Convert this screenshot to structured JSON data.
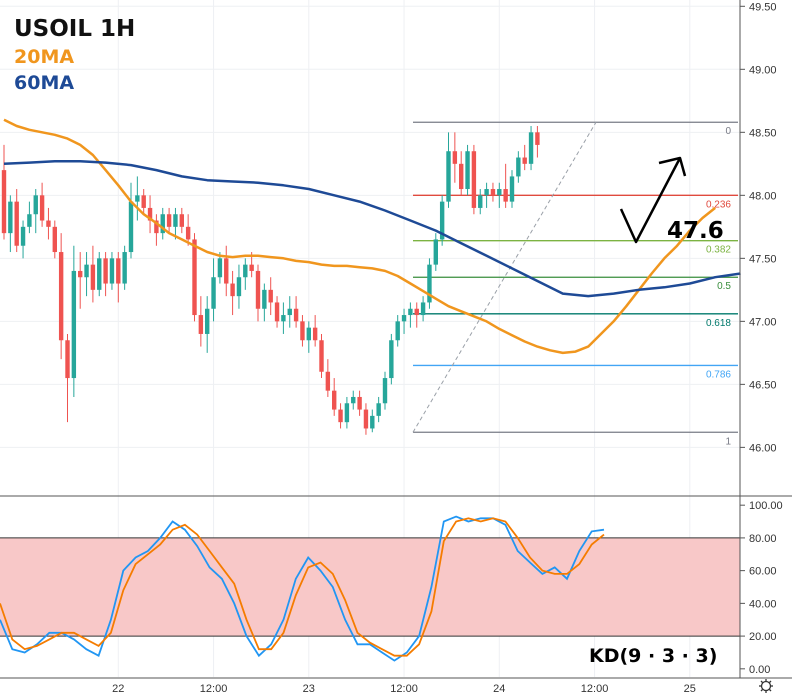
{
  "chart_data": [
    {
      "type": "candlestick",
      "title": "USOIL 1H",
      "legend": [
        "20MA",
        "60MA"
      ],
      "colors": {
        "up": "#26a69a",
        "down": "#ef5350",
        "ma20": "#f0961e",
        "ma60": "#1e4a96"
      },
      "x_tick_labels": [
        "22",
        "12:00",
        "23",
        "12:00",
        "24",
        "12:00",
        "25"
      ],
      "y_tick_labels": [
        "49.50",
        "49.00",
        "48.50",
        "48.00",
        "47.50",
        "47.00",
        "46.50",
        "46.00"
      ],
      "ylim": [
        45.63,
        49.55
      ],
      "candles_ohlc": [
        [
          48.2,
          48.4,
          47.65,
          47.7
        ],
        [
          47.7,
          48.0,
          47.55,
          47.95
        ],
        [
          47.95,
          48.05,
          47.55,
          47.6
        ],
        [
          47.6,
          47.8,
          47.5,
          47.75
        ],
        [
          47.75,
          47.95,
          47.7,
          47.85
        ],
        [
          47.85,
          48.05,
          47.7,
          48.0
        ],
        [
          48.0,
          48.1,
          47.75,
          47.8
        ],
        [
          47.8,
          47.9,
          47.65,
          47.75
        ],
        [
          47.75,
          47.8,
          47.5,
          47.55
        ],
        [
          47.55,
          47.7,
          46.7,
          46.85
        ],
        [
          46.85,
          46.9,
          46.2,
          46.55
        ],
        [
          46.55,
          47.6,
          46.4,
          47.4
        ],
        [
          47.4,
          47.55,
          47.1,
          47.35
        ],
        [
          47.35,
          47.55,
          47.2,
          47.45
        ],
        [
          47.45,
          47.6,
          47.15,
          47.25
        ],
        [
          47.25,
          47.55,
          47.2,
          47.5
        ],
        [
          47.5,
          47.55,
          47.2,
          47.3
        ],
        [
          47.3,
          47.55,
          47.25,
          47.5
        ],
        [
          47.5,
          47.55,
          47.15,
          47.3
        ],
        [
          47.3,
          47.6,
          47.25,
          47.55
        ],
        [
          47.55,
          48.1,
          47.5,
          47.95
        ],
        [
          47.95,
          48.15,
          47.8,
          48.0
        ],
        [
          48.0,
          48.05,
          47.85,
          47.9
        ],
        [
          47.9,
          48.0,
          47.7,
          47.8
        ],
        [
          47.8,
          47.85,
          47.6,
          47.7
        ],
        [
          47.7,
          47.9,
          47.65,
          47.85
        ],
        [
          47.85,
          47.9,
          47.7,
          47.75
        ],
        [
          47.75,
          47.9,
          47.65,
          47.85
        ],
        [
          47.85,
          47.9,
          47.7,
          47.75
        ],
        [
          47.75,
          47.85,
          47.6,
          47.65
        ],
        [
          47.65,
          47.7,
          47.0,
          47.05
        ],
        [
          47.05,
          47.2,
          46.8,
          46.9
        ],
        [
          46.9,
          47.2,
          46.75,
          47.1
        ],
        [
          47.1,
          47.5,
          47.0,
          47.35
        ],
        [
          47.35,
          47.55,
          47.3,
          47.5
        ],
        [
          47.5,
          47.6,
          47.2,
          47.3
        ],
        [
          47.3,
          47.4,
          47.05,
          47.2
        ],
        [
          47.2,
          47.45,
          47.1,
          47.35
        ],
        [
          47.35,
          47.5,
          47.25,
          47.45
        ],
        [
          47.45,
          47.55,
          47.35,
          47.4
        ],
        [
          47.4,
          47.45,
          47.0,
          47.1
        ],
        [
          47.1,
          47.3,
          47.0,
          47.25
        ],
        [
          47.25,
          47.35,
          47.05,
          47.15
        ],
        [
          47.15,
          47.2,
          46.95,
          47.0
        ],
        [
          47.0,
          47.15,
          46.9,
          47.05
        ],
        [
          47.05,
          47.2,
          46.95,
          47.1
        ],
        [
          47.1,
          47.2,
          46.95,
          47.0
        ],
        [
          47.0,
          47.05,
          46.8,
          46.85
        ],
        [
          46.85,
          47.0,
          46.75,
          46.95
        ],
        [
          46.95,
          47.05,
          46.8,
          46.85
        ],
        [
          46.85,
          46.9,
          46.55,
          46.6
        ],
        [
          46.6,
          46.7,
          46.4,
          46.45
        ],
        [
          46.45,
          46.55,
          46.25,
          46.3
        ],
        [
          46.3,
          46.35,
          46.15,
          46.2
        ],
        [
          46.2,
          46.4,
          46.15,
          46.35
        ],
        [
          46.35,
          46.45,
          46.3,
          46.4
        ],
        [
          46.4,
          46.45,
          46.25,
          46.3
        ],
        [
          46.3,
          46.35,
          46.1,
          46.15
        ],
        [
          46.15,
          46.3,
          46.12,
          46.25
        ],
        [
          46.25,
          46.4,
          46.2,
          46.35
        ],
        [
          46.35,
          46.6,
          46.3,
          46.55
        ],
        [
          46.55,
          46.9,
          46.5,
          46.85
        ],
        [
          46.85,
          47.05,
          46.8,
          47.0
        ],
        [
          47.0,
          47.1,
          46.9,
          47.05
        ],
        [
          47.05,
          47.15,
          46.95,
          47.1
        ],
        [
          47.1,
          47.15,
          46.95,
          47.05
        ],
        [
          47.05,
          47.2,
          47.0,
          47.15
        ],
        [
          47.15,
          47.5,
          47.1,
          47.45
        ],
        [
          47.45,
          47.7,
          47.4,
          47.65
        ],
        [
          47.65,
          48.0,
          47.6,
          47.95
        ],
        [
          47.95,
          48.5,
          47.9,
          48.35
        ],
        [
          48.35,
          48.5,
          48.1,
          48.25
        ],
        [
          48.25,
          48.35,
          48.0,
          48.05
        ],
        [
          48.05,
          48.4,
          48.0,
          48.35
        ],
        [
          48.35,
          48.4,
          47.85,
          47.9
        ],
        [
          47.9,
          48.05,
          47.85,
          48.0
        ],
        [
          48.0,
          48.1,
          47.9,
          48.05
        ],
        [
          48.05,
          48.1,
          47.95,
          48.0
        ],
        [
          48.0,
          48.1,
          47.9,
          48.05
        ],
        [
          48.05,
          48.25,
          47.9,
          47.95
        ],
        [
          47.95,
          48.2,
          47.9,
          48.15
        ],
        [
          48.15,
          48.35,
          48.1,
          48.3
        ],
        [
          48.3,
          48.4,
          48.2,
          48.25
        ],
        [
          48.25,
          48.55,
          48.2,
          48.5
        ],
        [
          48.5,
          48.55,
          48.3,
          48.4
        ]
      ],
      "ma20": [
        48.6,
        48.55,
        48.52,
        48.5,
        48.48,
        48.45,
        48.4,
        48.32,
        48.2,
        48.08,
        47.95,
        47.85,
        47.78,
        47.7,
        47.65,
        47.6,
        47.55,
        47.52,
        47.51,
        47.52,
        47.52,
        47.51,
        47.5,
        47.48,
        47.47,
        47.45,
        47.44,
        47.44,
        47.43,
        47.42,
        47.4,
        47.36,
        47.3,
        47.24,
        47.18,
        47.12,
        47.08,
        47.04,
        47.0,
        46.94,
        46.89,
        46.84,
        46.8,
        46.77,
        46.75,
        46.76,
        46.8,
        46.9,
        47.0,
        47.12,
        47.25,
        47.38,
        47.5,
        47.6,
        47.72,
        47.82,
        47.9
      ],
      "ma20_x_index": [
        0,
        2,
        4,
        6,
        8,
        10,
        12,
        14,
        16,
        18,
        20,
        22,
        24,
        26,
        28,
        30,
        32,
        34,
        36,
        38,
        40,
        42,
        44,
        46,
        48,
        50,
        52,
        54,
        56,
        58,
        60,
        62,
        64,
        66,
        68,
        70,
        72,
        74,
        76,
        78,
        80,
        82,
        84,
        86,
        88,
        90,
        92,
        94,
        96,
        98,
        100,
        102,
        104,
        106,
        108,
        110,
        112
      ],
      "ma60": [
        48.25,
        48.26,
        48.27,
        48.27,
        48.26,
        48.24,
        48.2,
        48.15,
        48.12,
        48.11,
        48.1,
        48.08,
        48.05,
        48.0,
        47.95,
        47.88,
        47.8,
        47.72,
        47.62,
        47.52,
        47.42,
        47.32,
        47.22,
        47.2,
        47.22,
        47.25,
        47.27,
        47.3,
        47.35,
        47.38
      ],
      "ma60_x_index": [
        0,
        4,
        8,
        12,
        16,
        20,
        24,
        28,
        32,
        36,
        40,
        44,
        48,
        52,
        56,
        60,
        64,
        68,
        72,
        76,
        80,
        84,
        88,
        92,
        96,
        100,
        104,
        108,
        112,
        116
      ],
      "fibonacci_levels": [
        {
          "label": "0",
          "price": 48.58,
          "color": "#787b86"
        },
        {
          "label": "0.236",
          "price": 48.0,
          "color": "#e04a3e"
        },
        {
          "label": "0.382",
          "price": 47.64,
          "color": "#7cb342"
        },
        {
          "label": "0.5",
          "price": 47.35,
          "color": "#388e3c"
        },
        {
          "label": "0.618",
          "price": 47.06,
          "color": "#00796b"
        },
        {
          "label": "0.786",
          "price": 46.65,
          "color": "#42a5f5"
        },
        {
          "label": "1",
          "price": 46.12,
          "color": "#787b86"
        }
      ],
      "fib_trendline": {
        "from_price": 46.12,
        "to_price": 48.58
      },
      "annotation": {
        "text": "47.6"
      }
    },
    {
      "type": "line",
      "title": "KD(9 · 3 · 3)",
      "ylim": [
        -5,
        105
      ],
      "y_tick_labels": [
        "100.00",
        "80.00",
        "60.00",
        "40.00",
        "20.00",
        "0.00"
      ],
      "band": [
        20,
        80
      ],
      "band_color": "#f8c8c8",
      "series": [
        {
          "color": "#2196f3",
          "values": [
            30,
            12,
            10,
            15,
            22,
            22,
            18,
            12,
            8,
            30,
            60,
            68,
            72,
            80,
            90,
            85,
            75,
            62,
            55,
            40,
            20,
            8,
            15,
            30,
            55,
            68,
            60,
            50,
            30,
            15,
            15,
            10,
            5,
            10,
            20,
            50,
            90,
            93,
            90,
            92,
            92,
            88,
            72,
            65,
            58,
            62,
            55,
            72,
            84,
            85
          ]
        },
        {
          "color": "#f57c00",
          "values": [
            40,
            18,
            12,
            14,
            18,
            22,
            22,
            18,
            14,
            22,
            48,
            64,
            70,
            76,
            85,
            88,
            82,
            72,
            62,
            52,
            30,
            12,
            12,
            22,
            45,
            62,
            65,
            58,
            42,
            22,
            16,
            12,
            8,
            8,
            15,
            35,
            78,
            90,
            92,
            90,
            92,
            90,
            80,
            68,
            60,
            58,
            58,
            64,
            76,
            82
          ]
        }
      ]
    }
  ],
  "main_x_ticks": [
    {
      "label": "22",
      "candle": 18
    },
    {
      "label": "12:00",
      "candle": 33
    },
    {
      "label": "23",
      "candle": 48
    },
    {
      "label": "12:00",
      "candle": 63
    },
    {
      "label": "24",
      "candle": 78
    },
    {
      "label": "12:00",
      "candle": 93
    },
    {
      "label": "25",
      "candle": 108
    }
  ],
  "header": {
    "title": "USOIL 1H",
    "ma20_label": "20MA",
    "ma60_label": "60MA"
  },
  "kd_label": "KD(9 · 3 · 3)",
  "annotation_text": "47.6",
  "settings_icon": "gear-icon"
}
